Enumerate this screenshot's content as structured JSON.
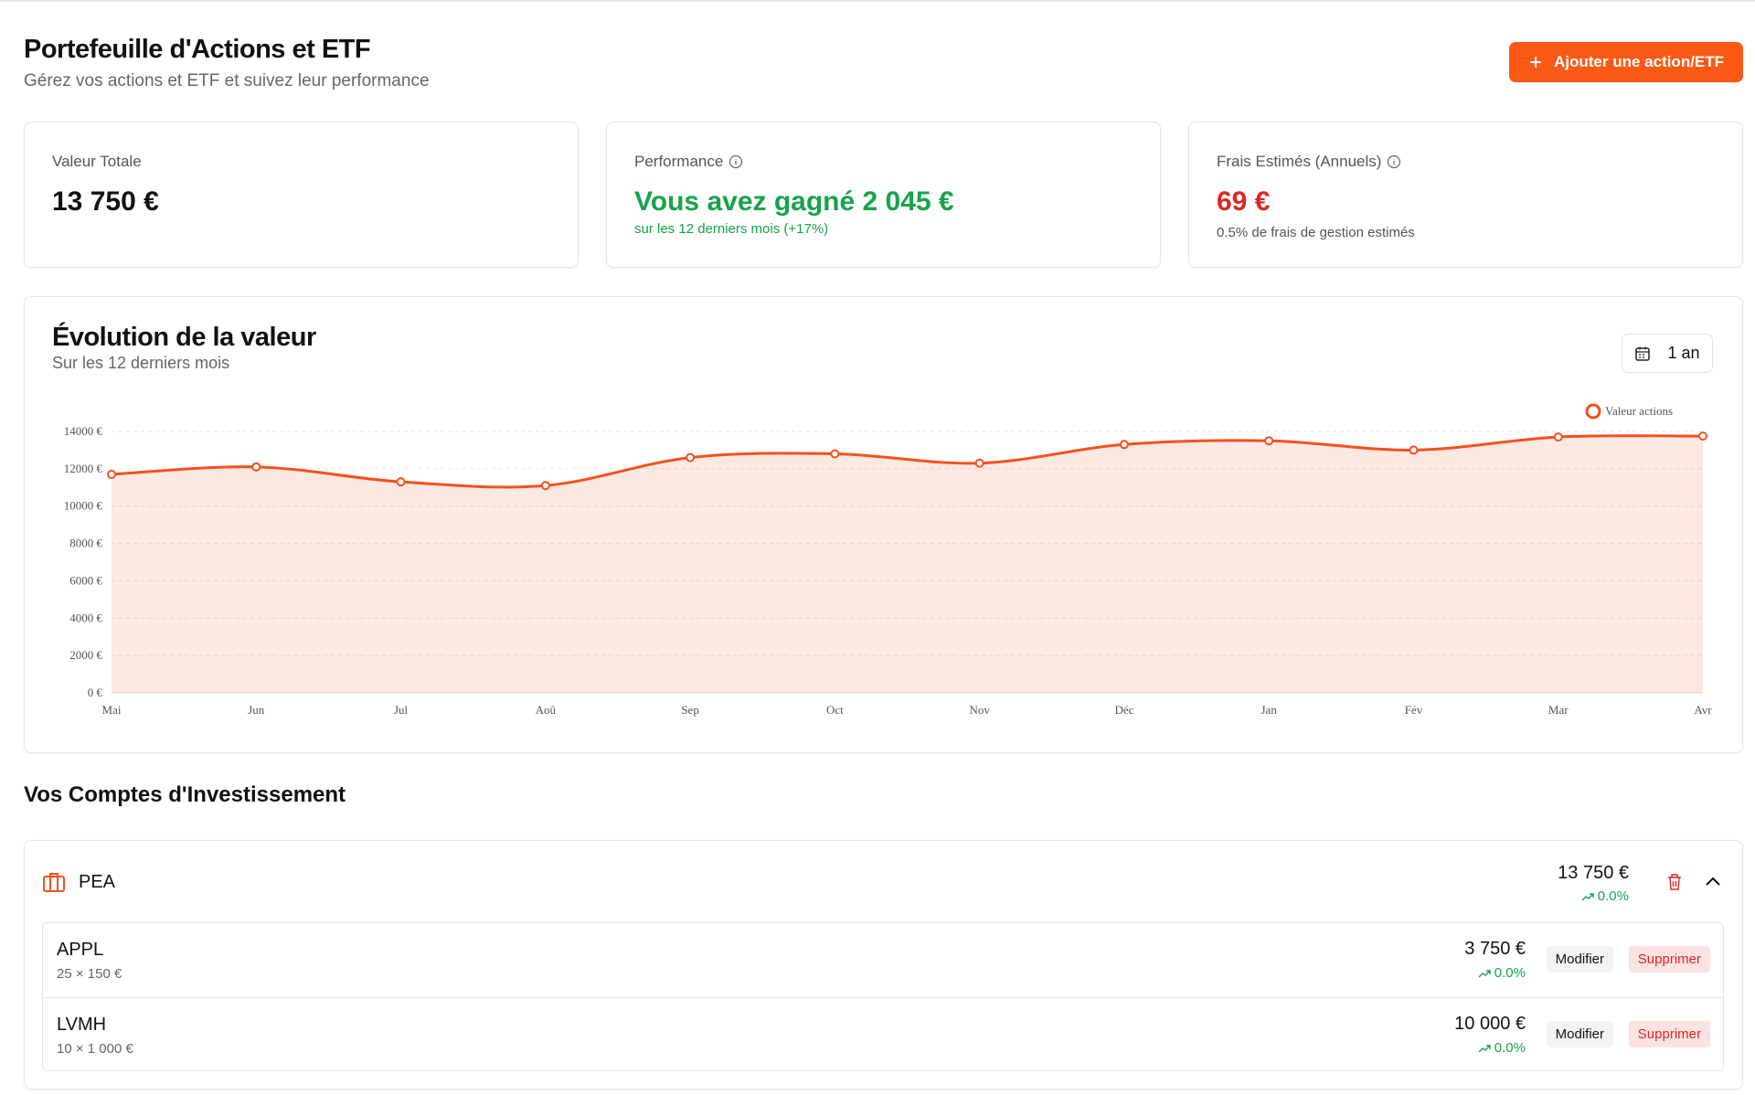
{
  "header": {
    "title": "Portefeuille d'Actions et ETF",
    "subtitle": "Gérez vos actions et ETF et suivez leur performance",
    "button": "Ajouter une action/ETF"
  },
  "summary": [
    {
      "label": "Valeur Totale",
      "value": "13 750 €"
    },
    {
      "label": "Performance",
      "value": "Vous avez gagné 2 045 €",
      "note": "sur les 12 derniers mois (+17%)"
    },
    {
      "label": "Frais Estimés (Annuels)",
      "value": "69 €",
      "note": "0.5% de frais de gestion estimés"
    }
  ],
  "chart_data": {
    "type": "line",
    "title": "Évolution de la valeur",
    "subtitle": "Sur les 12 derniers mois",
    "period": "1 an",
    "categories": [
      "Mai",
      "Jun",
      "Jul",
      "Aoû",
      "Sep",
      "Oct",
      "Nov",
      "Déc",
      "Jan",
      "Fév",
      "Mar",
      "Avr"
    ],
    "series": [
      {
        "name": "Valeur actions",
        "color": "#f4511e",
        "values": [
          11700,
          12100,
          11300,
          11100,
          12600,
          12800,
          12300,
          13300,
          13500,
          13000,
          13700,
          13750
        ]
      }
    ],
    "ylim": [
      0,
      14000
    ],
    "yticks": [
      {
        "value": 0,
        "label": "0 €"
      },
      {
        "value": 2000,
        "label": "2000 €"
      },
      {
        "value": 4000,
        "label": "4000 €"
      },
      {
        "value": 6000,
        "label": "6000 €"
      },
      {
        "value": 8000,
        "label": "8000 €"
      },
      {
        "value": 10000,
        "label": "10000 €"
      },
      {
        "value": 12000,
        "label": "12000 €"
      },
      {
        "value": 14000,
        "label": "14000 €"
      }
    ],
    "grid": true,
    "legend": "top-right"
  },
  "accounts": {
    "title": "Vos Comptes d'Investissement",
    "actions": {
      "edit": "Modifier",
      "delete": "Supprimer"
    },
    "items": [
      {
        "name": "PEA",
        "total": "13 750 €",
        "change": "0.0%",
        "holdings": [
          {
            "ticker": "APPL",
            "detail": "25 × 150 €",
            "value": "3 750 €",
            "change": "0.0%"
          },
          {
            "ticker": "LVMH",
            "detail": "10 × 1 000 €",
            "value": "10 000 €",
            "change": "0.0%"
          }
        ]
      }
    ]
  }
}
